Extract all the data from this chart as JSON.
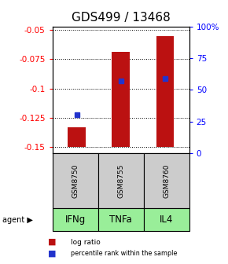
{
  "title": "GDS499 / 13468",
  "samples": [
    "GSM8750",
    "GSM8755",
    "GSM8760"
  ],
  "agents": [
    "IFNg",
    "TNFa",
    "IL4"
  ],
  "log_ratios": [
    -0.133,
    -0.069,
    -0.055
  ],
  "bar_base": -0.15,
  "percentile_ranks": [
    0.3,
    0.57,
    0.59
  ],
  "ylim_left": [
    -0.155,
    -0.047
  ],
  "ylim_right": [
    0,
    100
  ],
  "left_ticks": [
    -0.15,
    -0.125,
    -0.1,
    -0.075,
    -0.05
  ],
  "right_ticks": [
    0,
    25,
    50,
    75,
    100
  ],
  "right_tick_labels": [
    "0",
    "25",
    "50",
    "75",
    "100%"
  ],
  "bar_color": "#BB1111",
  "dot_color": "#2233CC",
  "agent_bg_color": "#99EE99",
  "sample_bg_color": "#CCCCCC",
  "title_fontsize": 11,
  "tick_fontsize": 7.5,
  "agent_label_fontsize": 8.5,
  "sample_label_fontsize": 6.5,
  "bar_width": 0.4
}
